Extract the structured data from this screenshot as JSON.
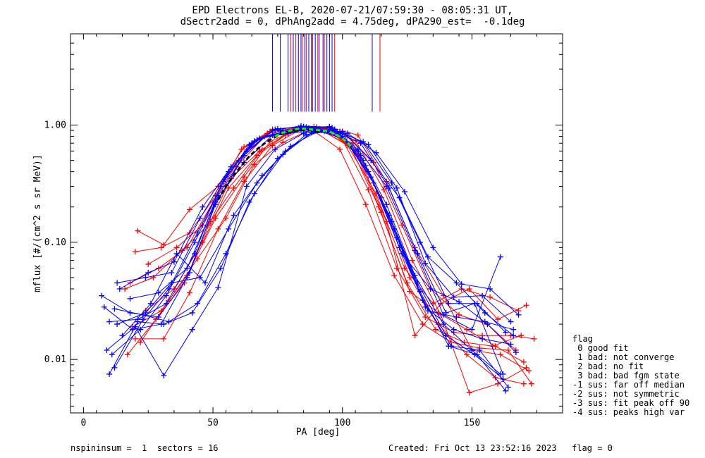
{
  "title_line1": "EPD Electrons EL-B, 2020-07-21/07:59:30 - 08:05:31 UT,",
  "title_line2": "dSectr2add = 0, dPhAng2add = 4.75deg, dPA290_est=  -0.1deg",
  "footer": {
    "left": "nspininsum =  1  sectors = 16",
    "right": "Created: Fri Oct 13 23:52:16 2023   flag = 0"
  },
  "legend": {
    "title": "flag",
    "items": [
      " 0 good fit",
      " 1 bad: not converge",
      " 2 bad: no fit",
      " 3 bad: bad fgm state",
      "-1 sus: far off median",
      "-2 sus: not symmetric",
      "-3 sus: fit peak off 90",
      "-4 sus: peaks high var"
    ]
  },
  "colors": {
    "red": "#ff0000",
    "blue": "#0000ff",
    "green": "#00ff00",
    "black": "#000000",
    "axis": "#000000"
  },
  "chart_data": {
    "type": "line",
    "xlabel": "PA [deg]",
    "ylabel": "mflux [#/(cm^2 s sr MeV)]",
    "x_range": [
      -5,
      185
    ],
    "y_range": [
      0.0035,
      6.0
    ],
    "y_scale": "log",
    "x_ticks": [
      0,
      50,
      100,
      150
    ],
    "x_tick_labels": [
      "0",
      "50",
      "100",
      "150"
    ],
    "y_ticks": [
      0.01,
      0.1,
      1.0
    ],
    "y_tick_labels": [
      "0.01",
      "0.10",
      "1.00"
    ],
    "peak_markers": {
      "y_bottom": 1.3,
      "blue_x": [
        73,
        76,
        79,
        81,
        83,
        84,
        85.5,
        87,
        88,
        89.5,
        91,
        92.5,
        94,
        95,
        96,
        111.5
      ],
      "red_x": [
        80,
        82,
        84.5,
        86,
        88.5,
        90.5,
        93,
        97,
        114.5
      ]
    },
    "red_series": [
      {
        "x": [
          21,
          31,
          41,
          52,
          62,
          73,
          84,
          95,
          106,
          117,
          128,
          139,
          150,
          161,
          172
        ],
        "y": [
          0.125,
          0.095,
          0.19,
          0.3,
          0.65,
          0.92,
          0.97,
          0.96,
          0.82,
          0.33,
          0.09,
          0.035,
          0.012,
          0.011,
          0.008
        ]
      },
      {
        "x": [
          20,
          30,
          41,
          51,
          61,
          72,
          83,
          94,
          105,
          116,
          127,
          138,
          149,
          160,
          171
        ],
        "y": [
          0.083,
          0.09,
          0.12,
          0.25,
          0.62,
          0.88,
          0.95,
          0.9,
          0.74,
          0.28,
          0.07,
          0.024,
          0.0052,
          0.0062,
          0.0085
        ]
      },
      {
        "x": [
          18,
          29,
          40,
          50,
          60,
          71,
          82,
          93,
          104,
          115,
          126,
          137,
          148,
          159,
          170
        ],
        "y": [
          0.045,
          0.06,
          0.09,
          0.22,
          0.5,
          0.85,
          0.93,
          0.88,
          0.7,
          0.24,
          0.05,
          0.02,
          0.011,
          0.007,
          0.0062
        ]
      },
      {
        "x": [
          17,
          28,
          39,
          49,
          59,
          70,
          81,
          92,
          103,
          114,
          125,
          136,
          147,
          158,
          169
        ],
        "y": [
          0.011,
          0.022,
          0.045,
          0.15,
          0.44,
          0.8,
          0.92,
          0.9,
          0.66,
          0.2,
          0.045,
          0.018,
          0.014,
          0.013,
          0.016
        ]
      },
      {
        "x": [
          19,
          30,
          40,
          51,
          62,
          72,
          83,
          94,
          105,
          115,
          126,
          137,
          148,
          159,
          170
        ],
        "y": [
          0.019,
          0.026,
          0.052,
          0.16,
          0.36,
          0.72,
          0.93,
          0.92,
          0.6,
          0.18,
          0.038,
          0.025,
          0.018,
          0.013,
          0.0095
        ]
      },
      {
        "x": [
          20,
          31,
          41,
          52,
          62,
          73,
          84,
          95,
          106,
          117,
          128,
          138,
          149,
          160,
          171
        ],
        "y": [
          0.015,
          0.015,
          0.037,
          0.13,
          0.33,
          0.67,
          0.92,
          0.95,
          0.56,
          0.15,
          0.016,
          0.03,
          0.04,
          0.022,
          0.029
        ]
      },
      {
        "x": [
          16,
          27,
          38,
          48,
          58,
          69,
          80,
          91,
          102,
          113,
          124,
          135,
          146,
          157,
          168
        ],
        "y": [
          0.04,
          0.05,
          0.085,
          0.14,
          0.29,
          0.62,
          0.88,
          0.93,
          0.67,
          0.26,
          0.06,
          0.03,
          0.04,
          0.034,
          0.026
        ]
      },
      {
        "x": [
          24,
          35,
          46,
          56,
          67,
          78,
          89,
          100,
          110,
          121,
          132,
          143,
          154,
          165,
          174
        ],
        "y": [
          0.026,
          0.04,
          0.1,
          0.29,
          0.55,
          0.82,
          0.97,
          0.75,
          0.28,
          0.06,
          0.023,
          0.017,
          0.016,
          0.016,
          0.015
        ]
      },
      {
        "x": [
          22,
          33,
          44,
          55,
          66,
          77,
          88,
          99,
          109,
          120,
          131,
          142,
          153,
          164,
          173
        ],
        "y": [
          0.014,
          0.032,
          0.072,
          0.16,
          0.46,
          0.71,
          0.92,
          0.62,
          0.21,
          0.052,
          0.02,
          0.014,
          0.0125,
          0.012,
          0.0062
        ]
      },
      {
        "x": [
          25,
          36,
          46,
          57,
          68,
          79,
          90,
          101,
          112,
          123,
          134,
          145,
          156,
          167
        ],
        "y": [
          0.065,
          0.09,
          0.14,
          0.35,
          0.6,
          0.85,
          0.96,
          0.85,
          0.48,
          0.14,
          0.04,
          0.024,
          0.02,
          0.012
        ]
      }
    ],
    "blue_series": [
      {
        "x": [
          7,
          18,
          29,
          40,
          51,
          62,
          73,
          84,
          95,
          106,
          117,
          128,
          139,
          150,
          161
        ],
        "y": [
          0.035,
          0.025,
          0.023,
          0.05,
          0.21,
          0.55,
          0.9,
          0.98,
          0.96,
          0.6,
          0.21,
          0.052,
          0.02,
          0.012,
          0.0075
        ]
      },
      {
        "x": [
          8,
          19,
          30,
          41,
          52,
          63,
          74,
          85,
          96,
          107,
          118,
          129,
          140,
          151,
          162
        ],
        "y": [
          0.028,
          0.018,
          0.02,
          0.055,
          0.25,
          0.6,
          0.92,
          0.97,
          0.95,
          0.55,
          0.17,
          0.045,
          0.016,
          0.011,
          0.0068
        ]
      },
      {
        "x": [
          10,
          21,
          32,
          43,
          53,
          64,
          75,
          86,
          97,
          108,
          119,
          130,
          141,
          152,
          163
        ],
        "y": [
          0.021,
          0.022,
          0.03,
          0.08,
          0.3,
          0.68,
          0.93,
          0.96,
          0.92,
          0.5,
          0.15,
          0.038,
          0.013,
          0.011,
          0.0054
        ]
      },
      {
        "x": [
          11,
          22,
          32,
          43,
          54,
          65,
          76,
          87,
          98,
          109,
          120,
          131,
          142,
          153,
          164
        ],
        "y": [
          0.011,
          0.018,
          0.035,
          0.1,
          0.33,
          0.7,
          0.9,
          0.94,
          0.88,
          0.45,
          0.13,
          0.032,
          0.013,
          0.012,
          0.0058
        ]
      },
      {
        "x": [
          12,
          23,
          33,
          44,
          55,
          66,
          77,
          88,
          99,
          110,
          121,
          132,
          143,
          154,
          165
        ],
        "y": [
          0.0085,
          0.022,
          0.04,
          0.12,
          0.36,
          0.73,
          0.88,
          0.92,
          0.84,
          0.4,
          0.11,
          0.028,
          0.018,
          0.015,
          0.0135
        ]
      },
      {
        "x": [
          13,
          24,
          34,
          45,
          56,
          67,
          78,
          89,
          100,
          111,
          122,
          133,
          144,
          155,
          166
        ],
        "y": [
          0.045,
          0.05,
          0.055,
          0.16,
          0.4,
          0.75,
          0.86,
          0.92,
          0.8,
          0.36,
          0.09,
          0.026,
          0.023,
          0.021,
          0.018
        ]
      },
      {
        "x": [
          14,
          25,
          35,
          46,
          57,
          68,
          79,
          90,
          101,
          112,
          123,
          134,
          145,
          156,
          167
        ],
        "y": [
          0.04,
          0.055,
          0.068,
          0.2,
          0.44,
          0.77,
          0.85,
          0.9,
          0.76,
          0.32,
          0.08,
          0.04,
          0.031,
          0.02,
          0.0115
        ]
      },
      {
        "x": [
          9,
          20,
          31,
          42,
          52,
          63,
          74,
          85,
          96,
          107,
          118,
          129,
          140,
          151,
          162
        ],
        "y": [
          0.012,
          0.019,
          0.0073,
          0.018,
          0.041,
          0.3,
          0.62,
          0.85,
          0.92,
          0.7,
          0.29,
          0.08,
          0.025,
          0.03,
          0.0075
        ]
      },
      {
        "x": [
          10,
          21,
          31,
          42,
          53,
          64,
          75,
          86,
          97,
          108,
          119,
          130,
          141,
          152,
          163
        ],
        "y": [
          0.0075,
          0.021,
          0.02,
          0.025,
          0.06,
          0.22,
          0.52,
          0.83,
          0.9,
          0.72,
          0.32,
          0.1,
          0.03,
          0.03,
          0.017
        ]
      },
      {
        "x": [
          12,
          23,
          33,
          44,
          55,
          66,
          77,
          88,
          99,
          110,
          121,
          132,
          143,
          154,
          165
        ],
        "y": [
          0.027,
          0.024,
          0.021,
          0.03,
          0.08,
          0.26,
          0.56,
          0.86,
          0.88,
          0.68,
          0.29,
          0.066,
          0.034,
          0.035,
          0.021
        ]
      },
      {
        "x": [
          13,
          24,
          34,
          45,
          56,
          67,
          78,
          89,
          100,
          111,
          122,
          133,
          144,
          155,
          166
        ],
        "y": [
          0.02,
          0.025,
          0.045,
          0.05,
          0.13,
          0.32,
          0.6,
          0.88,
          0.88,
          0.5,
          0.24,
          0.075,
          0.045,
          0.025,
          0.016
        ]
      },
      {
        "x": [
          15,
          26,
          36,
          47,
          58,
          69,
          80,
          91,
          102,
          113,
          124,
          135,
          146,
          157,
          168
        ],
        "y": [
          0.016,
          0.03,
          0.08,
          0.045,
          0.17,
          0.37,
          0.66,
          0.9,
          0.85,
          0.58,
          0.27,
          0.09,
          0.044,
          0.04,
          0.024
        ]
      },
      {
        "x": [
          18,
          29,
          40,
          51,
          62,
          73,
          84,
          95,
          106,
          117,
          128,
          139,
          150,
          161
        ],
        "y": [
          0.033,
          0.037,
          0.06,
          0.22,
          0.48,
          0.82,
          0.95,
          0.97,
          0.62,
          0.3,
          0.085,
          0.024,
          0.018,
          0.075
        ]
      }
    ],
    "fit_black": {
      "x": [
        52,
        55,
        58,
        61,
        64,
        67,
        70,
        73,
        76,
        79,
        82,
        85,
        88,
        91
      ],
      "y": [
        0.23,
        0.3,
        0.37,
        0.45,
        0.54,
        0.62,
        0.7,
        0.77,
        0.83,
        0.87,
        0.9,
        0.91,
        0.9,
        0.88
      ]
    },
    "fit_green": {
      "x": [
        74,
        77,
        80,
        83,
        86,
        89,
        92,
        95,
        98,
        101,
        104
      ],
      "y": [
        0.8,
        0.86,
        0.9,
        0.93,
        0.93,
        0.91,
        0.9,
        0.88,
        0.82,
        0.74,
        0.63
      ]
    }
  }
}
